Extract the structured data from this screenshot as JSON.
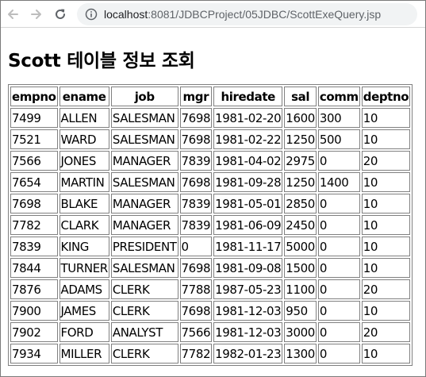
{
  "browser": {
    "url_host": "localhost",
    "url_rest": ":8081/JDBCProject/05JDBC/ScottExeQuery.jsp",
    "icons": [
      "back-arrow-icon",
      "forward-arrow-icon",
      "reload-icon",
      "site-info-icon"
    ]
  },
  "page": {
    "title": "Scott 테이블 정보 조회"
  },
  "table": {
    "headers": [
      "empno",
      "ename",
      "job",
      "mgr",
      "hiredate",
      "sal",
      "comm",
      "deptno"
    ],
    "rows": [
      [
        "7499",
        "ALLEN",
        "SALESMAN",
        "7698",
        "1981-02-20",
        "1600",
        "300",
        "10"
      ],
      [
        "7521",
        "WARD",
        "SALESMAN",
        "7698",
        "1981-02-22",
        "1250",
        "500",
        "10"
      ],
      [
        "7566",
        "JONES",
        "MANAGER",
        "7839",
        "1981-04-02",
        "2975",
        "0",
        "20"
      ],
      [
        "7654",
        "MARTIN",
        "SALESMAN",
        "7698",
        "1981-09-28",
        "1250",
        "1400",
        "10"
      ],
      [
        "7698",
        "BLAKE",
        "MANAGER",
        "7839",
        "1981-05-01",
        "2850",
        "0",
        "10"
      ],
      [
        "7782",
        "CLARK",
        "MANAGER",
        "7839",
        "1981-06-09",
        "2450",
        "0",
        "10"
      ],
      [
        "7839",
        "KING",
        "PRESIDENT",
        "0",
        "1981-11-17",
        "5000",
        "0",
        "10"
      ],
      [
        "7844",
        "TURNER",
        "SALESMAN",
        "7698",
        "1981-09-08",
        "1500",
        "0",
        "10"
      ],
      [
        "7876",
        "ADAMS",
        "CLERK",
        "7788",
        "1987-05-23",
        "1100",
        "0",
        "20"
      ],
      [
        "7900",
        "JAMES",
        "CLERK",
        "7698",
        "1981-12-03",
        "950",
        "0",
        "10"
      ],
      [
        "7902",
        "FORD",
        "ANALYST",
        "7566",
        "1981-12-03",
        "3000",
        "0",
        "20"
      ],
      [
        "7934",
        "MILLER",
        "CLERK",
        "7782",
        "1982-01-23",
        "1300",
        "0",
        "10"
      ]
    ]
  }
}
